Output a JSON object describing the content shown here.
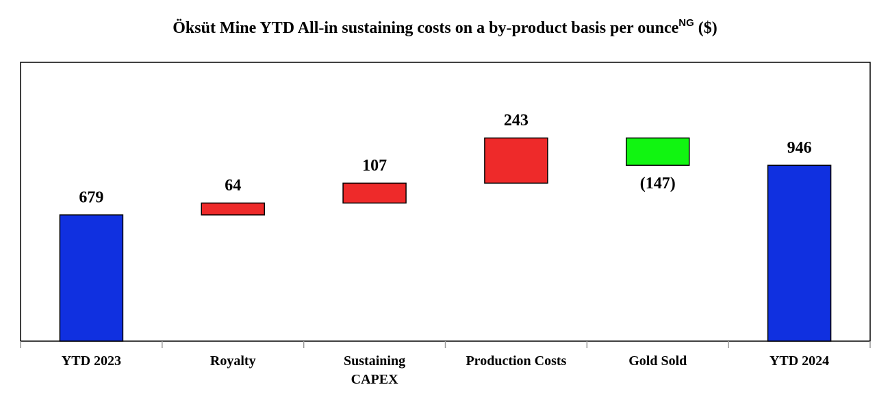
{
  "chart_data": {
    "type": "waterfall",
    "title": "Öksüt Mine YTD All-in sustaining costs on a by-product basis per ounce",
    "title_superscript": "NG",
    "title_suffix": "($)",
    "categories": [
      "YTD 2023",
      "Royalty",
      "Sustaining\nCAPEX",
      "Production Costs",
      "Gold Sold",
      "YTD 2024"
    ],
    "values": [
      679,
      64,
      107,
      243,
      -147,
      946
    ],
    "value_labels": [
      null,
      null,
      null,
      null,
      "(147)",
      null
    ],
    "is_total": [
      true,
      false,
      false,
      false,
      false,
      true
    ],
    "total_color": "#1030e0",
    "increase_color": "#ee2a2a",
    "decrease_color": "#11f511",
    "ylim": [
      0,
      1500
    ]
  }
}
